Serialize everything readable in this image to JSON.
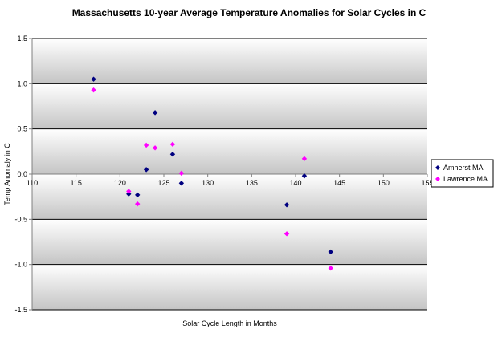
{
  "chart_data": {
    "type": "scatter",
    "title": "Massachusetts 10-year Average Temperature Anomalies for Solar Cycles in C",
    "xlabel": "Solar Cycle Length in Months",
    "ylabel": "Temp Anomaly in C",
    "xlim": [
      110,
      155
    ],
    "ylim": [
      -1.5,
      1.5
    ],
    "xticks": [
      110,
      115,
      120,
      125,
      130,
      135,
      140,
      145,
      150,
      155
    ],
    "xtick_labels": [
      "110",
      "115",
      "120",
      "125",
      "130",
      "135",
      "140",
      "145",
      "150",
      "155"
    ],
    "yticks": [
      1.5,
      1.0,
      0.5,
      0.0,
      -0.5,
      -1.0,
      -1.5
    ],
    "ytick_labels": [
      "1.5",
      "1.0",
      "0.5",
      "0.0",
      "-0.5",
      "-1.0",
      "-1.5"
    ],
    "grid": true,
    "legend_position": "right",
    "series": [
      {
        "name": "Amherst MA",
        "color": "#000080",
        "marker": "diamond",
        "points": [
          {
            "x": 117,
            "y": 1.05
          },
          {
            "x": 121,
            "y": -0.22
          },
          {
            "x": 122,
            "y": -0.23
          },
          {
            "x": 123,
            "y": 0.05
          },
          {
            "x": 124,
            "y": 0.68
          },
          {
            "x": 126,
            "y": 0.22
          },
          {
            "x": 127,
            "y": -0.1
          },
          {
            "x": 139,
            "y": -0.34
          },
          {
            "x": 141,
            "y": -0.02
          },
          {
            "x": 144,
            "y": -0.86
          }
        ]
      },
      {
        "name": "Lawrence MA",
        "color": "#ff00ff",
        "marker": "diamond",
        "points": [
          {
            "x": 117,
            "y": 0.93
          },
          {
            "x": 121,
            "y": -0.19
          },
          {
            "x": 122,
            "y": -0.33
          },
          {
            "x": 123,
            "y": 0.32
          },
          {
            "x": 124,
            "y": 0.29
          },
          {
            "x": 126,
            "y": 0.33
          },
          {
            "x": 127,
            "y": 0.01
          },
          {
            "x": 139,
            "y": -0.66
          },
          {
            "x": 141,
            "y": 0.17
          },
          {
            "x": 144,
            "y": -1.04
          }
        ]
      }
    ]
  }
}
